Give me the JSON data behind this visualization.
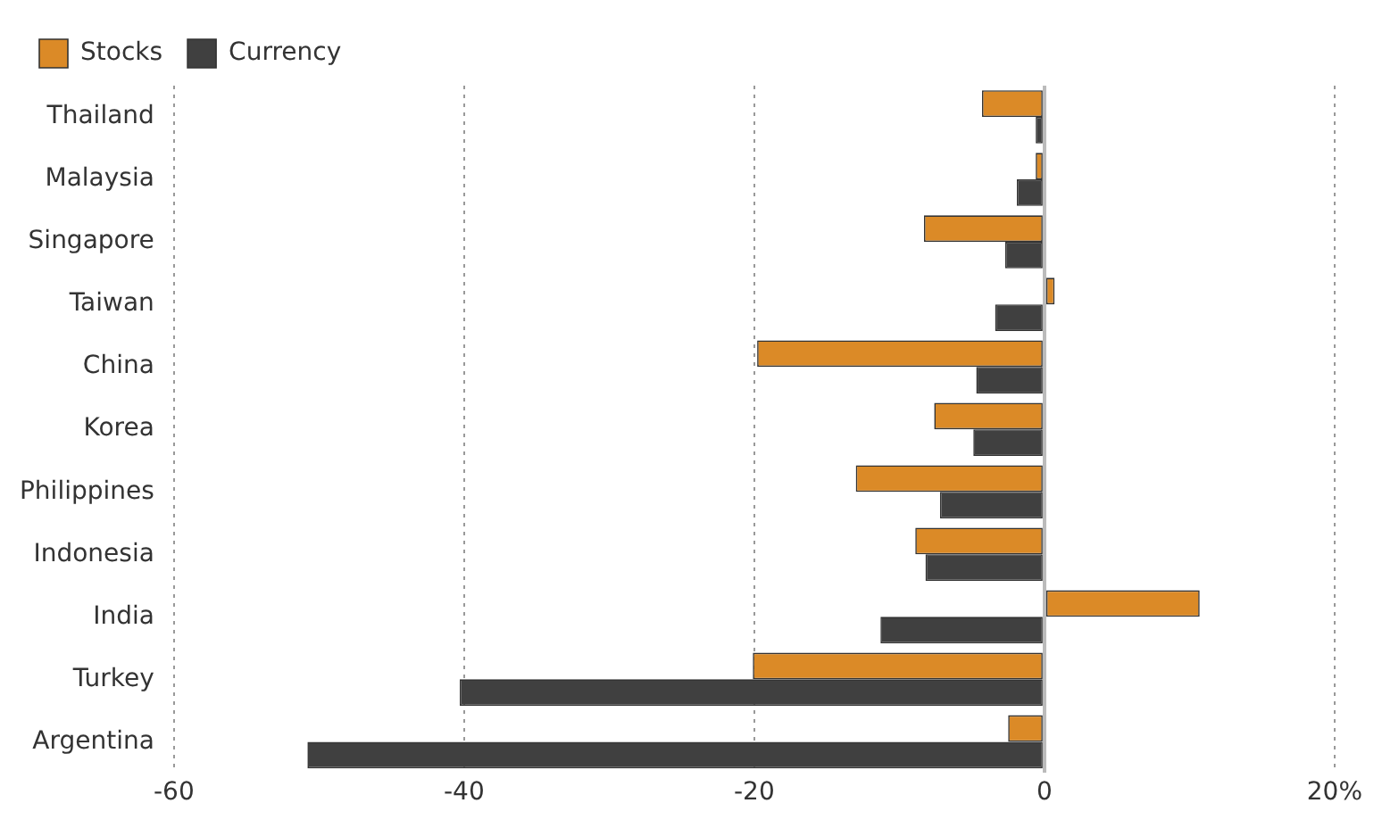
{
  "chart_data": {
    "type": "bar",
    "orientation": "horizontal",
    "categories": [
      "Thailand",
      "Malaysia",
      "Singapore",
      "Taiwan",
      "China",
      "Korea",
      "Philippines",
      "Indonesia",
      "India",
      "Turkey",
      "Argentina"
    ],
    "series": [
      {
        "name": "Stocks",
        "color": "#db8a27",
        "values": [
          -4.3,
          -0.6,
          -8.3,
          0.7,
          -19.8,
          -7.6,
          -13.0,
          -8.9,
          10.7,
          -20.1,
          -2.5
        ]
      },
      {
        "name": "Currency",
        "color": "#404040",
        "values": [
          -0.6,
          -1.9,
          -2.7,
          -3.4,
          -4.7,
          -4.9,
          -7.2,
          -8.2,
          -11.3,
          -40.3,
          -50.8
        ]
      }
    ],
    "xlim": [
      -60,
      20
    ],
    "xticks": [
      -60,
      -40,
      -20,
      0,
      {
        "value": 20,
        "label": "20%"
      }
    ],
    "grid": "x",
    "legend": "top left"
  }
}
